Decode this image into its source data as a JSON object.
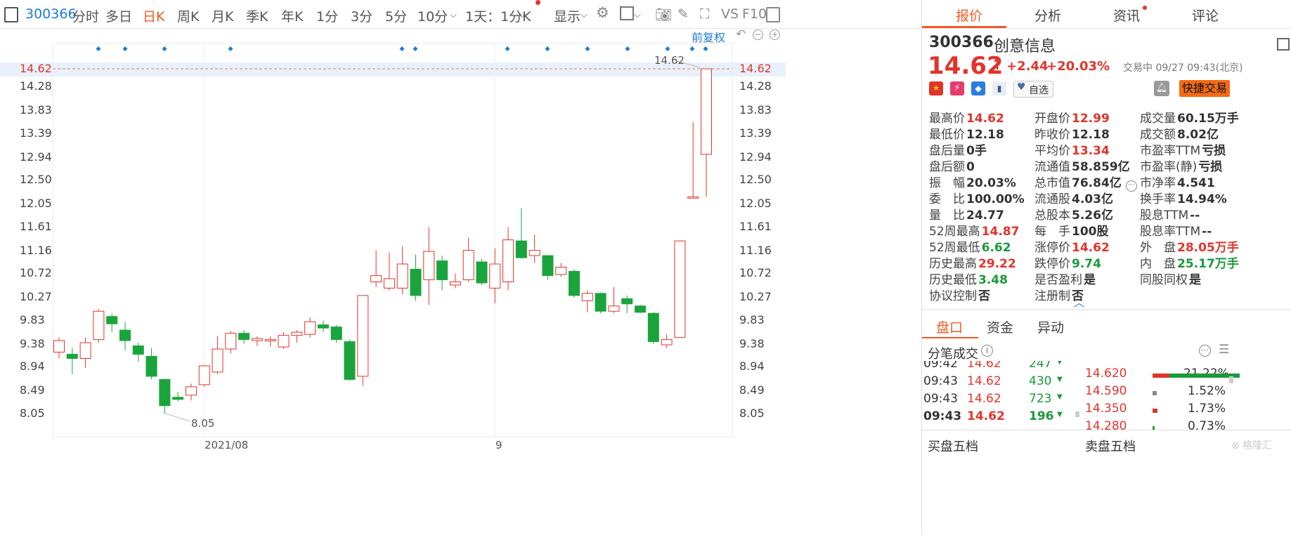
{
  "toolbar": {
    "code": "300366",
    "tabs": [
      "分时",
      "多日",
      "日K",
      "周K",
      "月K",
      "季K",
      "年K",
      "1分",
      "3分",
      "5分",
      "10分"
    ],
    "active_tab": "日K",
    "period_select": "1天：1分K",
    "display_label": "显示",
    "fq_label": "前复权",
    "vs_label": "VS",
    "f10_label": "F10"
  },
  "chart": {
    "y_ticks": [
      "14.62",
      "14.28",
      "13.83",
      "13.39",
      "12.94",
      "12.50",
      "12.05",
      "11.61",
      "11.16",
      "10.72",
      "10.27",
      "9.83",
      "9.38",
      "8.94",
      "8.49",
      "8.05"
    ],
    "right_ticks": [
      "14.62",
      "14.28",
      "13.83",
      "13.39",
      "12.94",
      "12.50",
      "12.05",
      "11.61",
      "11.16",
      "10.72",
      "10.27",
      "9.83",
      "9.38",
      "8.94",
      "8.49",
      "8.05"
    ],
    "x_labels": [
      "2021/08",
      "9"
    ],
    "high_note": "14.62",
    "low_note": "8.05",
    "last_price": "14.62",
    "colors": {
      "up": "#e0352b",
      "down": "#19a53c",
      "marker": "#1e7ad8"
    }
  },
  "chart_data": {
    "type": "candlestick",
    "ylim": [
      8.05,
      14.62
    ],
    "x_labels": [
      "2021/08",
      "9"
    ],
    "candles": [
      {
        "o": 9.22,
        "c": 9.44,
        "h": 9.5,
        "l": 9.1
      },
      {
        "o": 9.18,
        "c": 9.1,
        "h": 9.3,
        "l": 8.8
      },
      {
        "o": 9.1,
        "c": 9.4,
        "h": 9.5,
        "l": 8.92
      },
      {
        "o": 9.46,
        "c": 10.0,
        "h": 10.04,
        "l": 9.4
      },
      {
        "o": 9.9,
        "c": 9.76,
        "h": 9.95,
        "l": 9.6
      },
      {
        "o": 9.64,
        "c": 9.44,
        "h": 9.8,
        "l": 9.25
      },
      {
        "o": 9.34,
        "c": 9.18,
        "h": 9.4,
        "l": 9.04
      },
      {
        "o": 9.14,
        "c": 8.76,
        "h": 9.3,
        "l": 8.7
      },
      {
        "o": 8.7,
        "c": 8.2,
        "h": 8.72,
        "l": 8.05
      },
      {
        "o": 8.36,
        "c": 8.32,
        "h": 8.46,
        "l": 8.28
      },
      {
        "o": 8.4,
        "c": 8.56,
        "h": 8.62,
        "l": 8.3
      },
      {
        "o": 8.6,
        "c": 8.96,
        "h": 8.98,
        "l": 8.56
      },
      {
        "o": 8.84,
        "c": 9.28,
        "h": 9.52,
        "l": 8.8
      },
      {
        "o": 9.28,
        "c": 9.58,
        "h": 9.62,
        "l": 9.2
      },
      {
        "o": 9.58,
        "c": 9.46,
        "h": 9.64,
        "l": 9.38
      },
      {
        "o": 9.44,
        "c": 9.48,
        "h": 9.52,
        "l": 9.34
      },
      {
        "o": 9.46,
        "c": 9.46,
        "h": 9.52,
        "l": 9.32
      },
      {
        "o": 9.32,
        "c": 9.54,
        "h": 9.6,
        "l": 9.28
      },
      {
        "o": 9.54,
        "c": 9.6,
        "h": 9.64,
        "l": 9.4
      },
      {
        "o": 9.56,
        "c": 9.8,
        "h": 9.88,
        "l": 9.5
      },
      {
        "o": 9.74,
        "c": 9.68,
        "h": 9.82,
        "l": 9.6
      },
      {
        "o": 9.7,
        "c": 9.46,
        "h": 9.74,
        "l": 9.4
      },
      {
        "o": 9.42,
        "c": 8.7,
        "h": 9.46,
        "l": 8.68
      },
      {
        "o": 8.76,
        "c": 10.3,
        "h": 10.3,
        "l": 8.58
      },
      {
        "o": 10.56,
        "c": 10.68,
        "h": 11.16,
        "l": 10.46
      },
      {
        "o": 10.44,
        "c": 10.62,
        "h": 11.12,
        "l": 10.4
      },
      {
        "o": 10.44,
        "c": 10.9,
        "h": 11.24,
        "l": 10.32
      },
      {
        "o": 10.8,
        "c": 10.3,
        "h": 11.08,
        "l": 10.2
      },
      {
        "o": 10.6,
        "c": 11.14,
        "h": 11.6,
        "l": 10.12
      },
      {
        "o": 10.96,
        "c": 10.6,
        "h": 11.06,
        "l": 10.4
      },
      {
        "o": 10.5,
        "c": 10.56,
        "h": 10.72,
        "l": 10.44
      },
      {
        "o": 10.6,
        "c": 11.16,
        "h": 11.4,
        "l": 10.56
      },
      {
        "o": 10.94,
        "c": 10.54,
        "h": 11.0,
        "l": 10.5
      },
      {
        "o": 10.44,
        "c": 10.9,
        "h": 11.2,
        "l": 10.15
      },
      {
        "o": 10.56,
        "c": 11.36,
        "h": 11.6,
        "l": 10.4
      },
      {
        "o": 11.34,
        "c": 11.02,
        "h": 11.96,
        "l": 11.0
      },
      {
        "o": 11.06,
        "c": 11.16,
        "h": 11.46,
        "l": 10.92
      },
      {
        "o": 11.06,
        "c": 10.68,
        "h": 11.06,
        "l": 10.6
      },
      {
        "o": 10.7,
        "c": 10.84,
        "h": 10.92,
        "l": 10.66
      },
      {
        "o": 10.76,
        "c": 10.3,
        "h": 10.8,
        "l": 10.26
      },
      {
        "o": 10.2,
        "c": 10.34,
        "h": 10.4,
        "l": 9.98
      },
      {
        "o": 10.34,
        "c": 10.0,
        "h": 10.36,
        "l": 9.96
      },
      {
        "o": 10.0,
        "c": 10.1,
        "h": 10.46,
        "l": 9.96
      },
      {
        "o": 10.24,
        "c": 10.14,
        "h": 10.3,
        "l": 9.96
      },
      {
        "o": 10.1,
        "c": 9.98,
        "h": 10.12,
        "l": 9.96
      },
      {
        "o": 9.96,
        "c": 9.42,
        "h": 9.98,
        "l": 9.38
      },
      {
        "o": 9.36,
        "c": 9.46,
        "h": 9.56,
        "l": 9.3
      },
      {
        "o": 9.5,
        "c": 11.34,
        "h": 11.34,
        "l": 9.5
      },
      {
        "o": 12.18,
        "c": 12.18,
        "h": 13.6,
        "l": 12.18
      },
      {
        "o": 12.99,
        "c": 14.62,
        "h": 14.62,
        "l": 12.18
      }
    ]
  },
  "quote": {
    "code": "300366",
    "name": "创意信息",
    "price": "14.62",
    "change": "+2.44",
    "pct": "+20.03%",
    "status": "交易中 09/27 09:43(北京)",
    "watch_label": "自选",
    "trade_label": "快捷交易"
  },
  "right_tabs": [
    "报价",
    "分析",
    "资讯",
    "评论"
  ],
  "stats": [
    [
      {
        "k": "最高价",
        "v": "14.62",
        "c": "up"
      },
      {
        "k": "开盘价",
        "v": "12.99",
        "c": "up"
      },
      {
        "k": "成交量",
        "v": "60.15万手",
        "c": ""
      }
    ],
    [
      {
        "k": "最低价",
        "v": "12.18",
        "c": ""
      },
      {
        "k": "昨收价",
        "v": "12.18",
        "c": ""
      },
      {
        "k": "成交额",
        "v": "8.02亿",
        "c": ""
      }
    ],
    [
      {
        "k": "盘后量",
        "v": "0手",
        "c": ""
      },
      {
        "k": "平均价",
        "v": "13.34",
        "c": "up"
      },
      {
        "k": "市盈率TTM",
        "v": "亏损",
        "c": ""
      }
    ],
    [
      {
        "k": "盘后额",
        "v": "0",
        "c": ""
      },
      {
        "k": "流通值",
        "v": "58.859亿",
        "c": ""
      },
      {
        "k": "市盈率(静)",
        "v": "亏损",
        "c": ""
      }
    ],
    [
      {
        "k": "振　幅",
        "v": "20.03%",
        "c": ""
      },
      {
        "k": "总市值",
        "v": "76.84亿",
        "c": ""
      },
      {
        "k": "市净率",
        "v": "4.541",
        "c": ""
      }
    ],
    [
      {
        "k": "委　比",
        "v": "100.00%",
        "c": ""
      },
      {
        "k": "流通股",
        "v": "4.03亿",
        "c": ""
      },
      {
        "k": "换手率",
        "v": "14.94%",
        "c": ""
      }
    ],
    [
      {
        "k": "量　比",
        "v": "24.77",
        "c": ""
      },
      {
        "k": "总股本",
        "v": "5.26亿",
        "c": ""
      },
      {
        "k": "股息TTM",
        "v": "--",
        "c": ""
      }
    ],
    [
      {
        "k": "52周最高",
        "v": "14.87",
        "c": "up"
      },
      {
        "k": "每　手",
        "v": "100股",
        "c": ""
      },
      {
        "k": "股息率TTM",
        "v": "--",
        "c": ""
      }
    ],
    [
      {
        "k": "52周最低",
        "v": "6.62",
        "c": "dn"
      },
      {
        "k": "涨停价",
        "v": "14.62",
        "c": "up"
      },
      {
        "k": "外　盘",
        "v": "28.05万手",
        "c": "up"
      }
    ],
    [
      {
        "k": "历史最高",
        "v": "29.22",
        "c": "up"
      },
      {
        "k": "跌停价",
        "v": "9.74",
        "c": "dn"
      },
      {
        "k": "内　盘",
        "v": "25.17万手",
        "c": "dn"
      }
    ],
    [
      {
        "k": "历史最低",
        "v": "3.48",
        "c": "dn"
      },
      {
        "k": "是否盈利",
        "v": "是",
        "c": ""
      },
      {
        "k": "同股同权",
        "v": "是",
        "c": ""
      }
    ],
    [
      {
        "k": "协议控制",
        "v": "否",
        "c": ""
      },
      {
        "k": "注册制",
        "v": "否",
        "c": ""
      },
      {
        "k": "",
        "v": "",
        "c": ""
      }
    ]
  ],
  "sub_tabs": [
    "盘口",
    "资金",
    "异动"
  ],
  "ticks_title": "分笔成交",
  "ticks": [
    {
      "t": "09:42",
      "p": "14.62",
      "v": "247"
    },
    {
      "t": "09:43",
      "p": "14.62",
      "v": "430"
    },
    {
      "t": "09:43",
      "p": "14.62",
      "v": "723"
    },
    {
      "t": "09:43",
      "p": "14.62",
      "v": "196"
    }
  ],
  "dist": [
    {
      "p": "14.620",
      "pct": "21.22%"
    },
    {
      "p": "14.590",
      "pct": "1.52%"
    },
    {
      "p": "14.350",
      "pct": "1.73%"
    },
    {
      "p": "14.280",
      "pct": "0.73%"
    }
  ],
  "bottom_tabs": [
    "买盘五档",
    "卖盘五档"
  ]
}
